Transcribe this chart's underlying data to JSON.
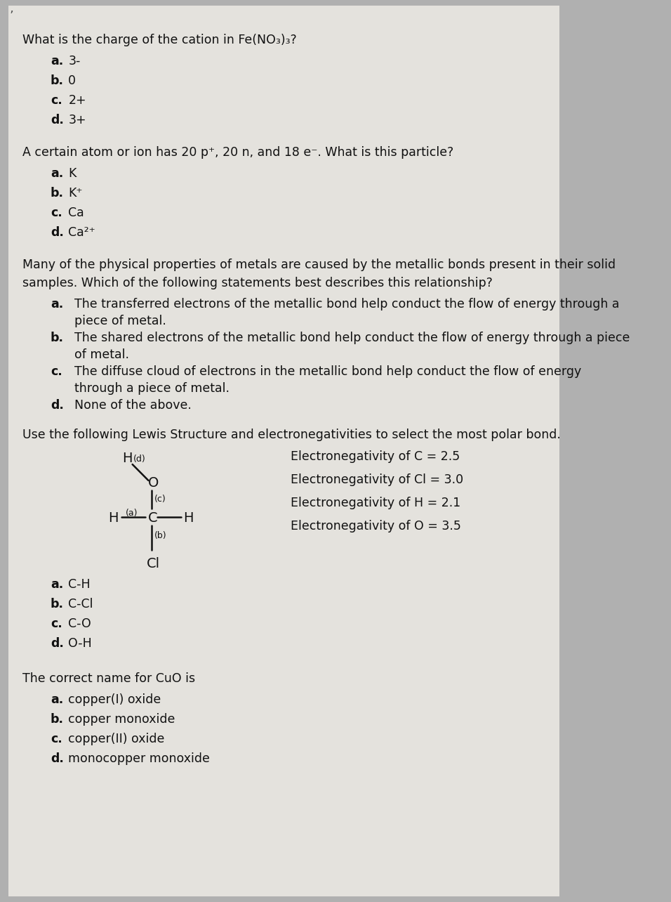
{
  "bg_color": "#b8b8b8",
  "paper_color": "#e5e3de",
  "text_color": "#1a1a1a",
  "font_family": "DejaVu Sans",
  "q1": {
    "question": "What is the charge of the cation in Fe(NO₃)₃?",
    "choices": [
      {
        "label": "a.",
        "text": "3-"
      },
      {
        "label": "b.",
        "text": "0"
      },
      {
        "label": "c.",
        "text": "2+"
      },
      {
        "label": "d.",
        "text": "3+"
      }
    ]
  },
  "q2": {
    "question": "A certain atom or ion has 20 p⁺, 20 n, and 18 e⁻. What is this particle?",
    "choices": [
      {
        "label": "a.",
        "text": "K"
      },
      {
        "label": "b.",
        "text": "K⁺"
      },
      {
        "label": "c.",
        "text": "Ca"
      },
      {
        "label": "d.",
        "text": "Ca²⁺"
      }
    ]
  },
  "q3": {
    "question_line1": "Many of the physical properties of metals are caused by the metallic bonds present in their solid",
    "question_line2": "samples. Which of the following statements best describes this relationship?",
    "choices": [
      {
        "label": "a.",
        "text1": "The transferred electrons of the metallic bond help conduct the flow of energy through a",
        "text2": "piece of metal."
      },
      {
        "label": "b.",
        "text1": "The shared electrons of the metallic bond help conduct the flow of energy through a piece",
        "text2": "of metal."
      },
      {
        "label": "c.",
        "text1": "The diffuse cloud of electrons in the metallic bond help conduct the flow of energy",
        "text2": "through a piece of metal."
      },
      {
        "label": "d.",
        "text1": "None of the above.",
        "text2": ""
      }
    ]
  },
  "q4": {
    "question": "Use the following Lewis Structure and electronegativities to select the most polar bond.",
    "choices": [
      {
        "label": "a.",
        "text": "C-H"
      },
      {
        "label": "b.",
        "text": "C-Cl"
      },
      {
        "label": "c.",
        "text": "C-O"
      },
      {
        "label": "d.",
        "text": "O-H"
      }
    ],
    "electronegativities": [
      "Electronegativity of C = 2.5",
      "Electronegativity of Cl = 3.0",
      "Electronegativity of H = 2.1",
      "Electronegativity of O = 3.5"
    ]
  },
  "q5": {
    "question": "The correct name for CuO is",
    "choices": [
      {
        "label": "a.",
        "text": "copper(I) oxide"
      },
      {
        "label": "b.",
        "text": "copper monoxide"
      },
      {
        "label": "c.",
        "text": "copper(II) oxide"
      },
      {
        "label": "d.",
        "text": "monocopper monoxide"
      }
    ]
  },
  "tick_mark": "’"
}
